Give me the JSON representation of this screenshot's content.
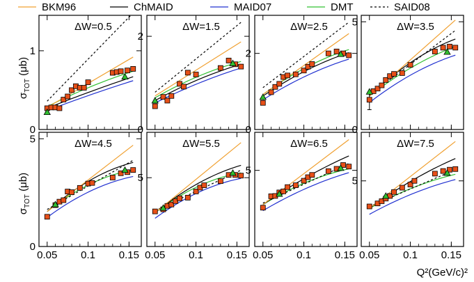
{
  "chart_data": {
    "type": "line",
    "legend": {
      "placement": "top",
      "entries": [
        {
          "key": "bkm",
          "label": "BKM96",
          "color": "#f0a030",
          "dash": ""
        },
        {
          "key": "chmaid",
          "label": "ChMAID",
          "color": "#000000",
          "dash": ""
        },
        {
          "key": "maid07",
          "label": "MAID07",
          "color": "#2030d0",
          "dash": ""
        },
        {
          "key": "dmt",
          "label": "DMT",
          "color": "#30c030",
          "dash": ""
        },
        {
          "key": "said",
          "label": "SAID08",
          "color": "#000000",
          "dash": "3,3"
        }
      ]
    },
    "xlabel": "Q²(GeV/c)²",
    "ylabel": "σ_TOT (μb)",
    "ylabel_main": "σ",
    "ylabel_sub": "TOT",
    "ylabel_unit": "(μb)",
    "xlim": [
      0.04,
      0.165
    ],
    "xticks": [
      0.05,
      0.1,
      0.15
    ],
    "xtick_labels": [
      "0.05",
      "0.1",
      "0.15"
    ],
    "marker_colors": {
      "square": "#e85018",
      "triangle": "#30c030"
    },
    "panels": [
      {
        "title": "ΔW=0.5",
        "ylim": [
          0,
          1.45
        ],
        "yticks": [
          0,
          1
        ],
        "ytick_labels": [
          "0",
          "1"
        ],
        "curves": {
          "bkm": {
            "x": [
              0.05,
              0.155
            ],
            "y": [
              0.28,
              0.92
            ]
          },
          "chmaid": {
            "x": [
              0.05,
              0.1,
              0.155
            ],
            "y": [
              0.27,
              0.47,
              0.67
            ]
          },
          "maid07": {
            "x": [
              0.05,
              0.1,
              0.155
            ],
            "y": [
              0.24,
              0.43,
              0.62
            ]
          },
          "dmt": {
            "x": [
              0.05,
              0.1,
              0.155
            ],
            "y": [
              0.29,
              0.53,
              0.74
            ]
          },
          "said": {
            "x": [
              0.05,
              0.155
            ],
            "y": [
              0.36,
              1.48
            ]
          }
        },
        "squares": {
          "x": [
            0.05,
            0.055,
            0.06,
            0.065,
            0.07,
            0.075,
            0.08,
            0.085,
            0.09,
            0.095,
            0.1,
            0.13,
            0.135,
            0.14,
            0.148,
            0.155
          ],
          "y": [
            0.27,
            0.28,
            0.28,
            0.27,
            0.38,
            0.42,
            0.5,
            0.55,
            0.53,
            0.53,
            0.6,
            0.72,
            0.73,
            0.74,
            0.75,
            0.77
          ]
        },
        "triangles": {
          "x": [
            0.05,
            0.145
          ],
          "y": [
            0.22,
            0.67
          ]
        }
      },
      {
        "title": "ΔW=1.5",
        "ylim": [
          0,
          2.45
        ],
        "yticks": [
          0,
          2
        ],
        "ytick_labels": [
          "0",
          "2"
        ],
        "curves": {
          "bkm": {
            "x": [
              0.05,
              0.155
            ],
            "y": [
              0.72,
              1.88
            ]
          },
          "chmaid": {
            "x": [
              0.05,
              0.1,
              0.155
            ],
            "y": [
              0.62,
              1.05,
              1.4
            ]
          },
          "maid07": {
            "x": [
              0.05,
              0.1,
              0.155
            ],
            "y": [
              0.57,
              0.97,
              1.32
            ]
          },
          "dmt": {
            "x": [
              0.05,
              0.1,
              0.155
            ],
            "y": [
              0.68,
              1.12,
              1.46
            ]
          },
          "said": {
            "x": [
              0.05,
              0.155
            ],
            "y": [
              0.8,
              2.3
            ]
          }
        },
        "squares": {
          "x": [
            0.05,
            0.06,
            0.065,
            0.07,
            0.08,
            0.085,
            0.09,
            0.1,
            0.13,
            0.14,
            0.148,
            0.155
          ],
          "y": [
            0.5,
            0.7,
            0.62,
            0.72,
            0.98,
            0.92,
            1.22,
            1.18,
            1.32,
            1.48,
            1.4,
            1.35
          ]
        },
        "triangles": {
          "x": [
            0.05,
            0.145
          ],
          "y": [
            0.62,
            1.42
          ]
        }
      },
      {
        "title": "ΔW=2.5",
        "ylim": [
          0,
          3.0
        ],
        "yticks": [
          0,
          2
        ],
        "ytick_labels": [
          "0",
          "2"
        ],
        "curves": {
          "bkm": {
            "x": [
              0.05,
              0.155
            ],
            "y": [
              0.92,
              2.52
            ]
          },
          "chmaid": {
            "x": [
              0.05,
              0.1,
              0.155
            ],
            "y": [
              0.88,
              1.52,
              2.02
            ]
          },
          "maid07": {
            "x": [
              0.05,
              0.1,
              0.155
            ],
            "y": [
              0.78,
              1.38,
              1.85
            ]
          },
          "dmt": {
            "x": [
              0.05,
              0.1,
              0.155
            ],
            "y": [
              0.92,
              1.6,
              2.1
            ]
          },
          "said": {
            "x": [
              0.05,
              0.155
            ],
            "y": [
              1.1,
              2.82
            ]
          }
        },
        "squares": {
          "x": [
            0.05,
            0.06,
            0.065,
            0.07,
            0.075,
            0.08,
            0.09,
            0.1,
            0.105,
            0.11,
            0.13,
            0.14,
            0.148,
            0.155
          ],
          "y": [
            0.7,
            0.98,
            1.12,
            1.2,
            1.38,
            1.42,
            1.45,
            1.55,
            1.65,
            1.72,
            2.0,
            2.05,
            2.0,
            1.95
          ]
        },
        "triangles": {
          "x": [
            0.05,
            0.145
          ],
          "y": [
            0.85,
            1.98
          ]
        }
      },
      {
        "title": "ΔW=3.5",
        "ylim": [
          0,
          5.3
        ],
        "yticks": [
          0,
          5
        ],
        "ytick_labels": [
          "0",
          "5"
        ],
        "curves": {
          "bkm": {
            "x": [
              0.05,
              0.155
            ],
            "y": [
              1.55,
              5.08
            ]
          },
          "chmaid": {
            "x": [
              0.05,
              0.1,
              0.155
            ],
            "y": [
              1.55,
              3.1,
              4.2
            ]
          },
          "maid07": {
            "x": [
              0.05,
              0.1,
              0.155
            ],
            "y": [
              1.25,
              2.52,
              3.45
            ]
          },
          "dmt": {
            "x": [
              0.05,
              0.1,
              0.155
            ],
            "y": [
              1.55,
              2.85,
              3.85
            ]
          },
          "said": {
            "x": [
              0.05,
              0.155
            ],
            "y": [
              1.6,
              4.6
            ]
          }
        },
        "squares": {
          "x": [
            0.05,
            0.055,
            0.06,
            0.065,
            0.07,
            0.075,
            0.08,
            0.09,
            0.1,
            0.13,
            0.14,
            0.148,
            0.155
          ],
          "y": [
            1.38,
            1.78,
            1.9,
            2.05,
            2.3,
            2.48,
            2.58,
            2.62,
            3.0,
            3.62,
            3.8,
            3.85,
            3.8
          ]
        },
        "triangles": {
          "x": [
            0.05,
            0.145
          ],
          "y": [
            1.75,
            3.6
          ]
        },
        "errorbar": {
          "x": 0.05,
          "y": 1.38,
          "low": 0.92,
          "high": 1.82
        }
      },
      {
        "title": "ΔW=4.5",
        "ylim": [
          0,
          5.3
        ],
        "yticks": [
          0,
          5
        ],
        "ytick_labels": [
          "0",
          "5"
        ],
        "curves": {
          "bkm": {
            "x": [
              0.05,
              0.155
            ],
            "y": [
              1.62,
              4.7
            ]
          },
          "chmaid": {
            "x": [
              0.05,
              0.1,
              0.155
            ],
            "y": [
              1.62,
              3.02,
              3.9
            ]
          },
          "maid07": {
            "x": [
              0.05,
              0.1,
              0.155
            ],
            "y": [
              1.35,
              2.52,
              3.25
            ]
          },
          "dmt": {
            "x": [
              0.05,
              0.1,
              0.155
            ],
            "y": [
              1.62,
              2.85,
              3.55
            ]
          },
          "said": {
            "x": [
              0.05,
              0.155
            ],
            "y": [
              1.72,
              4.0
            ]
          }
        },
        "squares": {
          "x": [
            0.05,
            0.06,
            0.065,
            0.07,
            0.075,
            0.08,
            0.09,
            0.1,
            0.105,
            0.13,
            0.14,
            0.148,
            0.155
          ],
          "y": [
            1.38,
            1.92,
            2.08,
            2.15,
            2.55,
            2.52,
            2.72,
            2.92,
            2.95,
            3.2,
            3.4,
            3.45,
            3.55
          ]
        },
        "triangles": {
          "x": [
            0.06,
            0.145
          ],
          "y": [
            1.95,
            3.55
          ]
        }
      },
      {
        "title": "ΔW=5.5",
        "ylim": [
          0,
          8.3
        ],
        "yticks": [
          5
        ],
        "ytick_labels": [
          "5"
        ],
        "curves": {
          "bkm": {
            "x": [
              0.05,
              0.155
            ],
            "y": [
              2.45,
              7.55
            ]
          },
          "chmaid": {
            "x": [
              0.05,
              0.1,
              0.155
            ],
            "y": [
              2.45,
              4.5,
              5.9
            ]
          },
          "maid07": {
            "x": [
              0.05,
              0.1,
              0.155
            ],
            "y": [
              2.05,
              3.85,
              4.95
            ]
          },
          "dmt": {
            "x": [
              0.05,
              0.1,
              0.155
            ],
            "y": [
              2.45,
              4.3,
              5.35
            ]
          },
          "said": {
            "x": [
              0.05,
              0.155
            ],
            "y": [
              2.6,
              5.55
            ]
          }
        },
        "squares": {
          "x": [
            0.05,
            0.06,
            0.065,
            0.07,
            0.075,
            0.08,
            0.09,
            0.1,
            0.105,
            0.11,
            0.13,
            0.14,
            0.148,
            0.155
          ],
          "y": [
            2.55,
            2.7,
            2.95,
            3.05,
            3.3,
            3.5,
            3.55,
            4.0,
            4.28,
            4.45,
            4.75,
            5.2,
            5.2,
            5.15
          ]
        },
        "triangles": {
          "x": [
            0.06,
            0.145
          ],
          "y": [
            2.8,
            5.35
          ]
        }
      },
      {
        "title": "ΔW=6.5",
        "ylim": [
          0,
          7.5
        ],
        "yticks": [
          5
        ],
        "ytick_labels": [
          "5"
        ],
        "curves": {
          "bkm": {
            "x": [
              0.05,
              0.155
            ],
            "y": [
              2.75,
              7.02
            ]
          },
          "chmaid": {
            "x": [
              0.05,
              0.1,
              0.155
            ],
            "y": [
              2.75,
              4.45,
              5.95
            ]
          },
          "maid07": {
            "x": [
              0.05,
              0.1,
              0.155
            ],
            "y": [
              2.35,
              3.75,
              4.85
            ]
          },
          "dmt": {
            "x": [
              0.05,
              0.1,
              0.155
            ],
            "y": [
              2.75,
              4.15,
              5.1
            ]
          },
          "said": {
            "x": [
              0.05,
              0.155
            ],
            "y": [
              2.85,
              5.45
            ]
          }
        },
        "squares": {
          "x": [
            0.05,
            0.06,
            0.065,
            0.07,
            0.075,
            0.08,
            0.09,
            0.1,
            0.105,
            0.11,
            0.13,
            0.14,
            0.148,
            0.155
          ],
          "y": [
            2.55,
            3.3,
            3.32,
            3.55,
            3.62,
            3.9,
            4.02,
            4.32,
            4.55,
            4.7,
            4.95,
            5.1,
            5.35,
            5.25
          ]
        },
        "triangles": {
          "x": [
            0.07,
            0.145
          ],
          "y": [
            3.45,
            5.15
          ]
        }
      },
      {
        "title": "ΔW=7.5",
        "ylim": [
          0,
          8.7
        ],
        "yticks": [
          5
        ],
        "ytick_labels": [
          "5"
        ],
        "curves": {
          "bkm": {
            "x": [
              0.05,
              0.155
            ],
            "y": [
              2.9,
              8.0
            ]
          },
          "chmaid": {
            "x": [
              0.05,
              0.1,
              0.155
            ],
            "y": [
              2.9,
              4.95,
              6.7
            ]
          },
          "maid07": {
            "x": [
              0.05,
              0.1,
              0.155
            ],
            "y": [
              2.45,
              3.95,
              5.1
            ]
          },
          "dmt": {
            "x": [
              0.05,
              0.1,
              0.155
            ],
            "y": [
              2.9,
              4.4,
              5.5
            ]
          },
          "said": {
            "x": [
              0.05,
              0.155
            ],
            "y": [
              3.05,
              5.85
            ]
          }
        },
        "squares": {
          "x": [
            0.05,
            0.06,
            0.065,
            0.07,
            0.075,
            0.08,
            0.09,
            0.1,
            0.105,
            0.13,
            0.14,
            0.148,
            0.155
          ],
          "y": [
            3.05,
            3.28,
            3.45,
            3.65,
            3.85,
            4.15,
            4.48,
            4.72,
            5.0,
            5.55,
            5.75,
            5.85,
            5.9
          ]
        },
        "triangles": {
          "x": [
            0.07,
            0.145
          ],
          "y": [
            3.85,
            5.6
          ]
        }
      }
    ]
  }
}
